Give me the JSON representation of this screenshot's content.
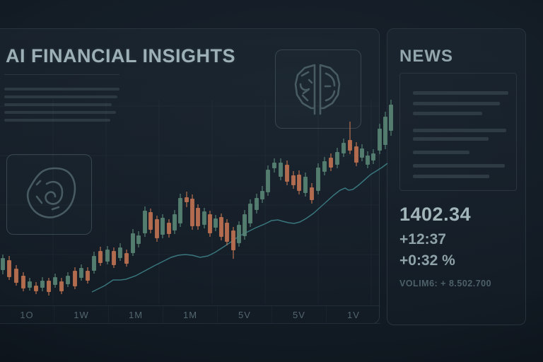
{
  "header": {
    "title": "AI FINANCIAL INSIGHTS"
  },
  "description_lines": {
    "y_start": 124,
    "y_step": 11,
    "widths": [
      163,
      160,
      152,
      158,
      150
    ]
  },
  "icons": {
    "left": "brain-profile-icon",
    "right": "brain-hemispheres-icon"
  },
  "tabs": [
    {
      "label": "1O"
    },
    {
      "label": "1W"
    },
    {
      "label": "1M"
    },
    {
      "label": "1M"
    },
    {
      "label": "5V"
    },
    {
      "label": "5V"
    },
    {
      "label": "1V"
    }
  ],
  "news": {
    "title": "NEWS",
    "placeholder_bars": [
      {
        "y": 25,
        "w": 135
      },
      {
        "y": 40,
        "w": 123
      },
      {
        "y": 54,
        "w": 98
      },
      {
        "y": 78,
        "w": 132
      },
      {
        "y": 90,
        "w": 107
      },
      {
        "y": 109,
        "w": 80
      },
      {
        "y": 128,
        "w": 130
      },
      {
        "y": 143,
        "w": 108
      }
    ],
    "price": "1402.34",
    "change": "+12:37",
    "change_pct": "+0:32 %",
    "volume": "VOLIM6: + 8.502.700"
  },
  "colors": {
    "bullish": "#578273",
    "bearish": "#bb7050",
    "ma_line": "#3d7f86",
    "grid": "rgba(150,185,200,0.05)",
    "accent_text": "#9db0b5"
  },
  "chart_data": {
    "type": "candlestick",
    "note": "pixel-space candles traced from screenshot; no numeric axis labels are visible in the image",
    "columns": [
      "x",
      "body_top",
      "body_bottom",
      "wick_top",
      "wick_bottom",
      "color(g=bullish,o=bearish)"
    ],
    "candles": [
      [
        4,
        365,
        382,
        360,
        388,
        "g"
      ],
      [
        13,
        368,
        392,
        362,
        396,
        "o"
      ],
      [
        23,
        380,
        400,
        375,
        404,
        "o"
      ],
      [
        33,
        390,
        408,
        385,
        412,
        "o"
      ],
      [
        42,
        398,
        407,
        393,
        411,
        "g"
      ],
      [
        51,
        404,
        412,
        399,
        416,
        "o"
      ],
      [
        60,
        397,
        407,
        392,
        412,
        "g"
      ],
      [
        69,
        397,
        413,
        393,
        418,
        "o"
      ],
      [
        78,
        392,
        403,
        387,
        407,
        "g"
      ],
      [
        87,
        398,
        412,
        393,
        416,
        "o"
      ],
      [
        96,
        390,
        402,
        385,
        406,
        "g"
      ],
      [
        106,
        383,
        405,
        378,
        409,
        "o"
      ],
      [
        115,
        379,
        393,
        374,
        397,
        "g"
      ],
      [
        124,
        383,
        397,
        378,
        401,
        "o"
      ],
      [
        133,
        362,
        383,
        356,
        387,
        "g"
      ],
      [
        142,
        355,
        372,
        349,
        376,
        "o"
      ],
      [
        152,
        353,
        370,
        348,
        374,
        "g"
      ],
      [
        161,
        355,
        375,
        350,
        379,
        "o"
      ],
      [
        170,
        350,
        365,
        344,
        369,
        "g"
      ],
      [
        179,
        358,
        373,
        353,
        377,
        "o"
      ],
      [
        188,
        330,
        358,
        324,
        362,
        "g"
      ],
      [
        196,
        333,
        345,
        327,
        350,
        "g"
      ],
      [
        205,
        298,
        330,
        292,
        335,
        "g"
      ],
      [
        213,
        300,
        325,
        295,
        330,
        "o"
      ],
      [
        222,
        310,
        337,
        305,
        342,
        "o"
      ],
      [
        230,
        308,
        332,
        303,
        337,
        "g"
      ],
      [
        239,
        315,
        331,
        310,
        336,
        "o"
      ],
      [
        247,
        303,
        326,
        297,
        331,
        "g"
      ],
      [
        255,
        280,
        316,
        274,
        321,
        "g"
      ],
      [
        264,
        279,
        286,
        271,
        293,
        "o"
      ],
      [
        272,
        281,
        320,
        275,
        325,
        "o"
      ],
      [
        280,
        294,
        320,
        289,
        325,
        "o"
      ],
      [
        289,
        299,
        318,
        294,
        323,
        "g"
      ],
      [
        297,
        303,
        330,
        298,
        335,
        "o"
      ],
      [
        305,
        309,
        322,
        304,
        327,
        "g"
      ],
      [
        313,
        307,
        335,
        302,
        340,
        "o"
      ],
      [
        321,
        315,
        342,
        310,
        347,
        "o"
      ],
      [
        330,
        326,
        354,
        321,
        366,
        "o"
      ],
      [
        338,
        318,
        344,
        313,
        349,
        "g"
      ],
      [
        346,
        303,
        334,
        297,
        339,
        "g"
      ],
      [
        354,
        288,
        316,
        282,
        321,
        "g"
      ],
      [
        363,
        280,
        297,
        274,
        302,
        "g"
      ],
      [
        371,
        270,
        282,
        263,
        287,
        "g"
      ],
      [
        379,
        240,
        272,
        234,
        277,
        "g"
      ],
      [
        388,
        230,
        238,
        224,
        244,
        "g"
      ],
      [
        397,
        230,
        250,
        224,
        255,
        "g"
      ],
      [
        406,
        233,
        257,
        227,
        262,
        "o"
      ],
      [
        415,
        248,
        262,
        242,
        267,
        "o"
      ],
      [
        423,
        247,
        270,
        241,
        275,
        "o"
      ],
      [
        432,
        250,
        273,
        244,
        278,
        "g"
      ],
      [
        441,
        265,
        283,
        259,
        288,
        "o"
      ],
      [
        450,
        237,
        270,
        231,
        275,
        "g"
      ],
      [
        459,
        228,
        243,
        222,
        248,
        "g"
      ],
      [
        468,
        223,
        237,
        217,
        242,
        "o"
      ],
      [
        477,
        215,
        233,
        209,
        238,
        "g"
      ],
      [
        486,
        202,
        217,
        196,
        222,
        "g"
      ],
      [
        495,
        198,
        213,
        172,
        218,
        "o"
      ],
      [
        504,
        207,
        230,
        201,
        235,
        "o"
      ],
      [
        512,
        210,
        223,
        204,
        228,
        "g"
      ],
      [
        520,
        220,
        233,
        214,
        238,
        "g"
      ],
      [
        528,
        217,
        227,
        211,
        232,
        "g"
      ],
      [
        537,
        182,
        213,
        175,
        218,
        "g"
      ],
      [
        545,
        165,
        205,
        158,
        211,
        "g"
      ],
      [
        553,
        148,
        185,
        141,
        192,
        "g"
      ]
    ],
    "ma_line_points": [
      [
        130,
        413
      ],
      [
        148,
        404
      ],
      [
        160,
        396
      ],
      [
        170,
        396
      ],
      [
        178,
        395
      ],
      [
        192,
        390
      ],
      [
        205,
        383
      ],
      [
        218,
        376
      ],
      [
        230,
        370
      ],
      [
        242,
        364
      ],
      [
        252,
        361
      ],
      [
        262,
        360
      ],
      [
        272,
        361
      ],
      [
        283,
        364
      ],
      [
        294,
        362
      ],
      [
        304,
        357
      ],
      [
        315,
        350
      ],
      [
        327,
        342
      ],
      [
        338,
        334
      ],
      [
        350,
        328
      ],
      [
        362,
        322
      ],
      [
        374,
        317
      ],
      [
        384,
        312
      ],
      [
        393,
        311
      ],
      [
        400,
        313
      ],
      [
        408,
        315
      ],
      [
        416,
        316
      ],
      [
        424,
        314
      ],
      [
        433,
        309
      ],
      [
        443,
        302
      ],
      [
        452,
        294
      ],
      [
        462,
        285
      ],
      [
        472,
        276
      ],
      [
        481,
        269
      ],
      [
        488,
        266
      ],
      [
        493,
        269
      ],
      [
        499,
        268
      ],
      [
        507,
        262
      ],
      [
        515,
        255
      ],
      [
        524,
        247
      ],
      [
        532,
        242
      ],
      [
        540,
        237
      ],
      [
        548,
        231
      ]
    ],
    "grid": {
      "vertical_x": [
        75,
        150,
        225,
        300,
        375,
        450,
        525
      ],
      "horizontal_y": [
        150,
        220,
        290,
        360
      ],
      "x_range": [
        0,
        537
      ],
      "y_range": [
        142,
        430
      ]
    },
    "legend_position": "none",
    "title": ""
  }
}
